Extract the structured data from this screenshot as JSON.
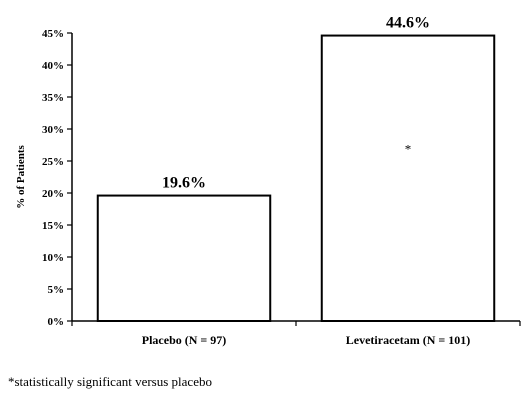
{
  "chart_data": {
    "type": "bar",
    "categories": [
      "Placebo (N = 97)",
      "Levetiracetam (N = 101)"
    ],
    "values": [
      19.6,
      44.6
    ],
    "data_labels": [
      "19.6%",
      "44.6%"
    ],
    "ylabel": "% of Patients",
    "ylim": [
      0,
      45
    ],
    "yticks": [
      0,
      5,
      10,
      15,
      20,
      25,
      30,
      35,
      40,
      45
    ],
    "ytick_labels": [
      "0%",
      "5%",
      "10%",
      "15%",
      "20%",
      "25%",
      "30%",
      "35%",
      "40%",
      "45%"
    ],
    "grid": false,
    "bar_fill": "#ffffff",
    "bar_stroke": "#000000",
    "annotations": [
      {
        "category_index": 1,
        "text": "*"
      }
    ]
  },
  "footnote": "*statistically significant versus placebo"
}
